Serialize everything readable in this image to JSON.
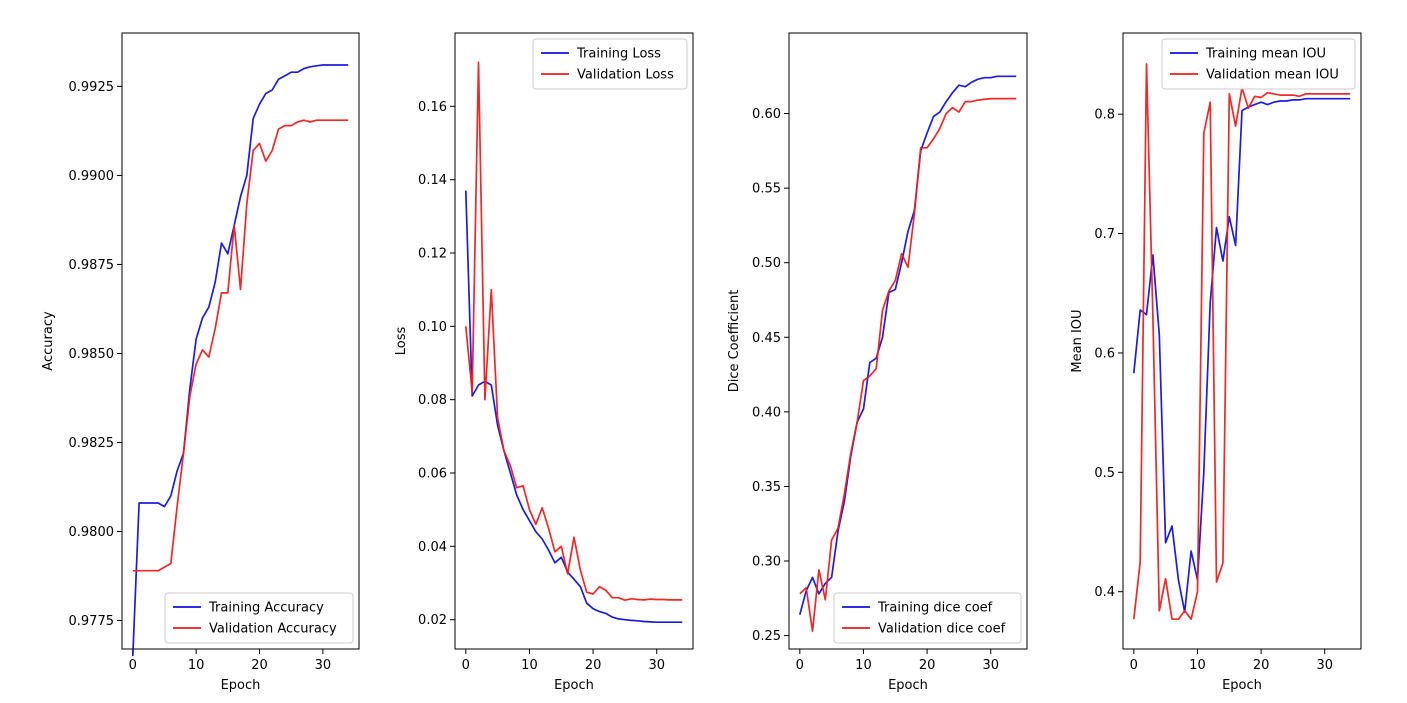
{
  "chart_data": [
    {
      "type": "line",
      "xlabel": "Epoch",
      "ylabel": "Accuracy",
      "xlim": [
        -1.7,
        35.7
      ],
      "ylim": [
        0.9767,
        0.994
      ],
      "xticks": [
        0,
        10,
        20,
        30
      ],
      "yticks": [
        0.9775,
        0.98,
        0.9825,
        0.985,
        0.9875,
        0.99,
        0.9925
      ],
      "ytick_labels": [
        "0.9775",
        "0.9800",
        "0.9825",
        "0.9850",
        "0.9875",
        "0.9900",
        "0.9925"
      ],
      "legend_position": "lower-right",
      "grid": false,
      "series": [
        {
          "name": "Training Accuracy",
          "color": "#1010e0",
          "x": [
            0,
            1,
            2,
            3,
            4,
            5,
            6,
            7,
            8,
            9,
            10,
            11,
            12,
            13,
            14,
            15,
            16,
            17,
            18,
            19,
            20,
            21,
            22,
            23,
            24,
            25,
            26,
            27,
            28,
            29,
            30,
            31,
            32,
            33,
            34
          ],
          "values": [
            0.9765,
            0.9808,
            0.9808,
            0.9808,
            0.9808,
            0.9807,
            0.981,
            0.9817,
            0.9822,
            0.984,
            0.9854,
            0.986,
            0.9863,
            0.987,
            0.9881,
            0.9878,
            0.9886,
            0.9894,
            0.99,
            0.9916,
            0.992,
            0.9923,
            0.9924,
            0.9927,
            0.9928,
            0.9929,
            0.9929,
            0.993,
            0.99305,
            0.99308,
            0.9931,
            0.9931,
            0.9931,
            0.9931,
            0.9931
          ]
        },
        {
          "name": "Validation Accuracy",
          "color": "#ee1c1c",
          "x": [
            0,
            1,
            2,
            3,
            4,
            5,
            6,
            7,
            8,
            9,
            10,
            11,
            12,
            13,
            14,
            15,
            16,
            17,
            18,
            19,
            20,
            21,
            22,
            23,
            24,
            25,
            26,
            27,
            28,
            29,
            30,
            31,
            32,
            33,
            34
          ],
          "values": [
            0.9789,
            0.9789,
            0.9789,
            0.9789,
            0.9789,
            0.979,
            0.9791,
            0.9807,
            0.9822,
            0.9838,
            0.9847,
            0.9851,
            0.9849,
            0.9857,
            0.9867,
            0.9867,
            0.9886,
            0.9868,
            0.9892,
            0.9907,
            0.9909,
            0.9904,
            0.9907,
            0.9913,
            0.9914,
            0.9914,
            0.9915,
            0.99155,
            0.9915,
            0.99155,
            0.99155,
            0.99155,
            0.99155,
            0.99155,
            0.99155
          ]
        }
      ]
    },
    {
      "type": "line",
      "xlabel": "Epoch",
      "ylabel": "Loss",
      "xlim": [
        -1.7,
        35.7
      ],
      "ylim": [
        0.012,
        0.18
      ],
      "xticks": [
        0,
        10,
        20,
        30
      ],
      "yticks": [
        0.02,
        0.04,
        0.06,
        0.08,
        0.1,
        0.12,
        0.14,
        0.16
      ],
      "ytick_labels": [
        "0.02",
        "0.04",
        "0.06",
        "0.08",
        "0.10",
        "0.12",
        "0.14",
        "0.16"
      ],
      "legend_position": "upper-right",
      "grid": false,
      "series": [
        {
          "name": "Training Loss",
          "color": "#1010e0",
          "x": [
            0,
            1,
            2,
            3,
            4,
            5,
            6,
            7,
            8,
            9,
            10,
            11,
            12,
            13,
            14,
            15,
            16,
            17,
            18,
            19,
            20,
            21,
            22,
            23,
            24,
            25,
            26,
            27,
            28,
            29,
            30,
            31,
            32,
            33,
            34
          ],
          "values": [
            0.137,
            0.081,
            0.084,
            0.085,
            0.084,
            0.073,
            0.066,
            0.06,
            0.054,
            0.05,
            0.047,
            0.044,
            0.042,
            0.039,
            0.0355,
            0.037,
            0.033,
            0.031,
            0.029,
            0.0245,
            0.023,
            0.0222,
            0.0217,
            0.0207,
            0.0202,
            0.02,
            0.0198,
            0.0197,
            0.0195,
            0.0194,
            0.0193,
            0.0193,
            0.0193,
            0.0193,
            0.0193
          ]
        },
        {
          "name": "Validation Loss",
          "color": "#ee1c1c",
          "x": [
            0,
            1,
            2,
            3,
            4,
            5,
            6,
            7,
            8,
            9,
            10,
            11,
            12,
            13,
            14,
            15,
            16,
            17,
            18,
            19,
            20,
            21,
            22,
            23,
            24,
            25,
            26,
            27,
            28,
            29,
            30,
            31,
            32,
            33,
            34
          ],
          "values": [
            0.1,
            0.082,
            0.172,
            0.08,
            0.11,
            0.075,
            0.066,
            0.062,
            0.056,
            0.0565,
            0.05,
            0.046,
            0.0505,
            0.045,
            0.0385,
            0.04,
            0.0325,
            0.0425,
            0.0335,
            0.0275,
            0.027,
            0.029,
            0.028,
            0.026,
            0.026,
            0.0253,
            0.0257,
            0.0255,
            0.0254,
            0.0256,
            0.0255,
            0.0255,
            0.0254,
            0.0254,
            0.0254
          ]
        }
      ]
    },
    {
      "type": "line",
      "xlabel": "Epoch",
      "ylabel": "Dice Coefficient",
      "xlim": [
        -1.7,
        35.7
      ],
      "ylim": [
        0.241,
        0.654
      ],
      "xticks": [
        0,
        10,
        20,
        30
      ],
      "yticks": [
        0.25,
        0.3,
        0.35,
        0.4,
        0.45,
        0.5,
        0.55,
        0.6
      ],
      "ytick_labels": [
        "0.25",
        "0.30",
        "0.35",
        "0.40",
        "0.45",
        "0.50",
        "0.55",
        "0.60"
      ],
      "legend_position": "lower-right",
      "grid": false,
      "series": [
        {
          "name": "Training dice coef",
          "color": "#1010e0",
          "x": [
            0,
            1,
            2,
            3,
            4,
            5,
            6,
            7,
            8,
            9,
            10,
            11,
            12,
            13,
            14,
            15,
            16,
            17,
            18,
            19,
            20,
            21,
            22,
            23,
            24,
            25,
            26,
            27,
            28,
            29,
            30,
            31,
            32,
            33,
            34
          ],
          "values": [
            0.264,
            0.28,
            0.289,
            0.278,
            0.285,
            0.289,
            0.32,
            0.34,
            0.37,
            0.393,
            0.402,
            0.433,
            0.436,
            0.45,
            0.48,
            0.482,
            0.5,
            0.521,
            0.535,
            0.575,
            0.587,
            0.598,
            0.601,
            0.608,
            0.614,
            0.619,
            0.618,
            0.621,
            0.623,
            0.624,
            0.624,
            0.625,
            0.625,
            0.625,
            0.625
          ]
        },
        {
          "name": "Validation dice coef",
          "color": "#ee1c1c",
          "x": [
            0,
            1,
            2,
            3,
            4,
            5,
            6,
            7,
            8,
            9,
            10,
            11,
            12,
            13,
            14,
            15,
            16,
            17,
            18,
            19,
            20,
            21,
            22,
            23,
            24,
            25,
            26,
            27,
            28,
            29,
            30,
            31,
            32,
            33,
            34
          ],
          "values": [
            0.278,
            0.282,
            0.253,
            0.294,
            0.274,
            0.314,
            0.322,
            0.345,
            0.372,
            0.393,
            0.421,
            0.424,
            0.429,
            0.468,
            0.481,
            0.488,
            0.506,
            0.497,
            0.533,
            0.577,
            0.577,
            0.583,
            0.59,
            0.6,
            0.604,
            0.601,
            0.608,
            0.608,
            0.609,
            0.6095,
            0.61,
            0.61,
            0.61,
            0.61,
            0.61
          ]
        }
      ]
    },
    {
      "type": "line",
      "xlabel": "Epoch",
      "ylabel": "Mean IOU",
      "xlim": [
        -1.7,
        35.7
      ],
      "ylim": [
        0.352,
        0.868
      ],
      "xticks": [
        0,
        10,
        20,
        30
      ],
      "yticks": [
        0.4,
        0.5,
        0.6,
        0.7,
        0.8
      ],
      "ytick_labels": [
        "0.4",
        "0.5",
        "0.6",
        "0.7",
        "0.8"
      ],
      "legend_position": "upper-right",
      "grid": false,
      "series": [
        {
          "name": "Training mean IOU",
          "color": "#1010e0",
          "x": [
            0,
            1,
            2,
            3,
            4,
            5,
            6,
            7,
            8,
            9,
            10,
            11,
            12,
            13,
            14,
            15,
            16,
            17,
            18,
            19,
            20,
            21,
            22,
            23,
            24,
            25,
            26,
            27,
            28,
            29,
            30,
            31,
            32,
            33,
            34
          ],
          "values": [
            0.583,
            0.636,
            0.632,
            0.682,
            0.615,
            0.441,
            0.455,
            0.41,
            0.383,
            0.434,
            0.41,
            0.5,
            0.642,
            0.705,
            0.677,
            0.714,
            0.69,
            0.803,
            0.806,
            0.808,
            0.81,
            0.808,
            0.81,
            0.811,
            0.811,
            0.812,
            0.812,
            0.813,
            0.813,
            0.813,
            0.813,
            0.813,
            0.813,
            0.813,
            0.813
          ]
        },
        {
          "name": "Validation mean IOU",
          "color": "#ee1c1c",
          "x": [
            0,
            1,
            2,
            3,
            4,
            5,
            6,
            7,
            8,
            9,
            10,
            11,
            12,
            13,
            14,
            15,
            16,
            17,
            18,
            19,
            20,
            21,
            22,
            23,
            24,
            25,
            26,
            27,
            28,
            29,
            30,
            31,
            32,
            33,
            34
          ],
          "values": [
            0.377,
            0.425,
            0.842,
            0.63,
            0.384,
            0.411,
            0.377,
            0.377,
            0.384,
            0.377,
            0.4,
            0.784,
            0.81,
            0.408,
            0.424,
            0.817,
            0.79,
            0.822,
            0.805,
            0.815,
            0.814,
            0.818,
            0.817,
            0.816,
            0.816,
            0.816,
            0.815,
            0.817,
            0.817,
            0.817,
            0.817,
            0.817,
            0.817,
            0.817,
            0.817
          ]
        }
      ]
    }
  ]
}
